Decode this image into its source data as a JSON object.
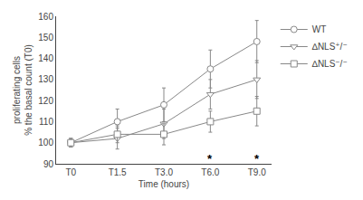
{
  "chart_data": {
    "type": "line",
    "xlabel": "Time (hours)",
    "ylabel": "proliferating cells\n% the basal count (T0)",
    "categories": [
      "T0",
      "T1.5",
      "T3.0",
      "T6.0",
      "T9.0"
    ],
    "series": [
      {
        "name": "WT",
        "color": "#888888",
        "marker": "circle",
        "values": [
          100,
          110,
          118,
          135,
          148
        ],
        "errors": [
          2,
          6,
          8,
          9,
          10
        ]
      },
      {
        "name": "∆NLS⁺/⁻",
        "color": "#888888",
        "marker": "triangle-down",
        "values": [
          100,
          102,
          109,
          123,
          130
        ],
        "errors": [
          2,
          5,
          7,
          7,
          9
        ]
      },
      {
        "name": "∆NLS⁻/⁻",
        "color": "#888888",
        "marker": "square",
        "values": [
          100,
          104,
          104,
          110,
          115
        ],
        "errors": [
          2,
          4,
          5,
          5,
          7
        ]
      }
    ],
    "annotations": [
      {
        "text": "*",
        "x": "T6.0",
        "y": 92.5
      },
      {
        "text": "*",
        "x": "T9.0",
        "y": 92.5
      }
    ],
    "ylim": [
      90,
      160
    ],
    "yticks": [
      90,
      100,
      110,
      120,
      130,
      140,
      150,
      160
    ],
    "grid": false,
    "legend": "right"
  }
}
